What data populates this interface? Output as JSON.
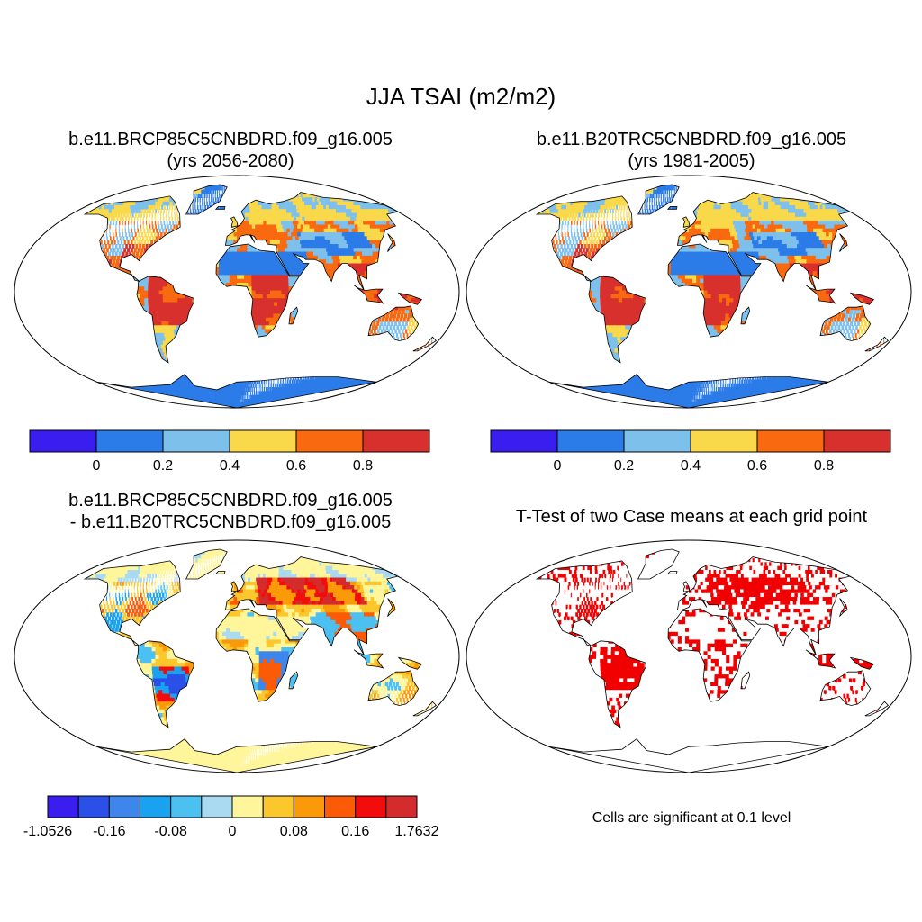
{
  "title": "JJA TSAI (m2/m2)",
  "panels": [
    {
      "id": "future",
      "title_line1": "b.e11.BRCP85C5CNBDRD.f09_g16.005",
      "title_line2": "(yrs 2056-2080)",
      "variant": "mean"
    },
    {
      "id": "historical",
      "title_line1": "b.e11.B20TRC5CNBDRD.f09_g16.005",
      "title_line2": "(yrs 1981-2005)",
      "variant": "mean"
    },
    {
      "id": "difference",
      "title_line1": "b.e11.BRCP85C5CNBDRD.f09_g16.005",
      "title_line2": "- b.e11.B20TRC5CNBDRD.f09_g16.005",
      "variant": "diff"
    },
    {
      "id": "ttest",
      "title_line1": "T-Test of two Case means at each grid point",
      "title_line2": "",
      "variant": "sig"
    }
  ],
  "colorbar_mean": {
    "colors": [
      "#3a1ef0",
      "#2b7be8",
      "#7ec0ec",
      "#f9d84a",
      "#f96a10",
      "#d8302c"
    ],
    "labels": [
      "0",
      "0.2",
      "0.4",
      "0.6",
      "0.8"
    ]
  },
  "colorbar_diff": {
    "colors": [
      "#3a1ef0",
      "#2a50e8",
      "#3f86ec",
      "#19a2f0",
      "#4dc0f2",
      "#aadaf2",
      "#fff59a",
      "#fcc72c",
      "#fb9a08",
      "#fb5a06",
      "#f20c0c",
      "#d42c2c"
    ],
    "labels": [
      "-1.0526",
      "-0.16",
      "-0.08",
      "0",
      "0.08",
      "0.16",
      "1.7632"
    ]
  },
  "significance_note": "Cells are significant at 0.1 level",
  "colors": {
    "ocean": "#ffffff",
    "coast": "#000000",
    "significant": "#f00000"
  }
}
